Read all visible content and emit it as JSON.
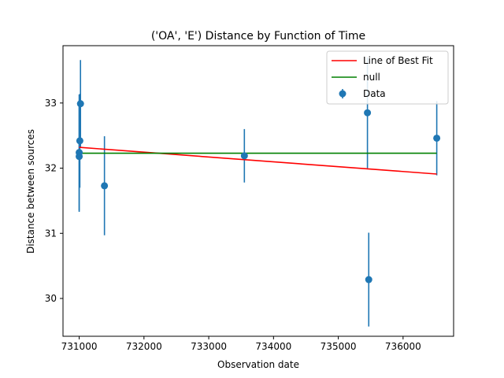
{
  "chart_data": {
    "type": "scatter",
    "title": "('OA', 'E') Distance by Function of Time",
    "xlabel": "Observation date",
    "ylabel": "Distance between sources",
    "xlim": [
      730750,
      736780
    ],
    "ylim": [
      29.42,
      33.88
    ],
    "x_ticks": [
      731000,
      732000,
      733000,
      734000,
      735000,
      736000
    ],
    "y_ticks": [
      30,
      31,
      32,
      33
    ],
    "grid": false,
    "legend_position": "top-right",
    "colors": {
      "data": "#1f77b4",
      "best_fit": "#ff0000",
      "null": "#008000"
    },
    "series": [
      {
        "name": "Data",
        "kind": "errorbar",
        "points": [
          {
            "x": 731000,
            "y": 32.24,
            "err": 0.89
          },
          {
            "x": 731000,
            "y": 32.18,
            "err": 0.85
          },
          {
            "x": 731010,
            "y": 32.42,
            "err": 0.72
          },
          {
            "x": 731020,
            "y": 32.99,
            "err": 0.67
          },
          {
            "x": 731390,
            "y": 31.73,
            "err": 0.76
          },
          {
            "x": 733550,
            "y": 32.19,
            "err": 0.41
          },
          {
            "x": 735450,
            "y": 32.85,
            "err": 0.85
          },
          {
            "x": 735470,
            "y": 30.29,
            "err": 0.72
          },
          {
            "x": 736520,
            "y": 32.46,
            "err": 0.57
          }
        ]
      },
      {
        "name": "Line of Best Fit",
        "kind": "line",
        "x": [
          731000,
          736520
        ],
        "y": [
          32.32,
          31.91
        ]
      },
      {
        "name": "null",
        "kind": "line",
        "x": [
          731000,
          736520
        ],
        "y": [
          32.23,
          32.23
        ]
      }
    ]
  }
}
